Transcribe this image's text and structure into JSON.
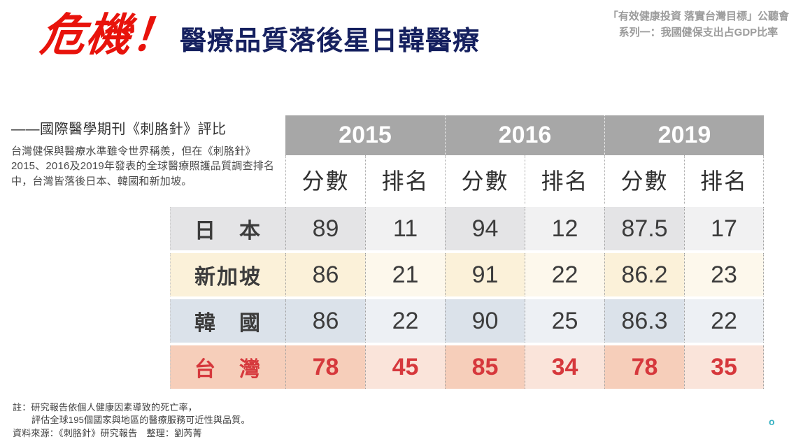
{
  "header": {
    "crisis": "危機！",
    "title": "醫療品質落後星日韓醫療",
    "event_line1": "「有效健康投資 落實台灣目標」公聽會",
    "event_line2": "系列一：我國健保支出占GDP比率"
  },
  "intro": {
    "heading": "——國際醫學期刊《刺胳針》評比",
    "body": "台灣健保與醫療水準雖令世界稱羨，但在《刺胳針》2015、2016及2019年發表的全球醫療照護品質調查排名中，台灣皆落後日本、韓國和新加坡。"
  },
  "table": {
    "header_bg": "#a7a7a7",
    "years": [
      "2015",
      "2016",
      "2019"
    ],
    "subheaders": [
      "分數",
      "排名",
      "分數",
      "排名",
      "分數",
      "排名"
    ],
    "rows": [
      {
        "name": "日　本",
        "values": [
          "89",
          "11",
          "94",
          "12",
          "87.5",
          "17"
        ],
        "score_bg": "#e4e4e6",
        "rank_bg": "#f1f1f2",
        "text_color": "#3c3c3c",
        "bold": false
      },
      {
        "name": "新加坡",
        "values": [
          "86",
          "21",
          "91",
          "22",
          "86.2",
          "23"
        ],
        "score_bg": "#fbf1d9",
        "rank_bg": "#fdf8ec",
        "text_color": "#3c3c3c",
        "bold": false
      },
      {
        "name": "韓　國",
        "values": [
          "86",
          "22",
          "90",
          "25",
          "86.3",
          "22"
        ],
        "score_bg": "#dbe2ea",
        "rank_bg": "#edf0f4",
        "text_color": "#3c3c3c",
        "bold": false
      },
      {
        "name": "台　灣",
        "values": [
          "78",
          "45",
          "85",
          "34",
          "78",
          "35"
        ],
        "score_bg": "#f6ceba",
        "rank_bg": "#fae4da",
        "text_color": "#d6383c",
        "bold": true
      }
    ]
  },
  "footer": {
    "note_line1": "註：研究報告依個人健康因素導致的死亡率，",
    "note_line2": "評估全球195個國家與地區的醫療服務可近性與品質。",
    "source": "資料來源：《刺胳針》研究報告　整理：劉芮菁",
    "page_marker": "o"
  },
  "colors": {
    "crisis_red": "#e8130c",
    "title_navy": "#15205f",
    "event_gray": "#9c9c9c",
    "taiwan_red": "#d6383c",
    "page_marker_teal": "#3ab3c4"
  },
  "chart_data": {
    "type": "table",
    "title": "國際醫學期刊《刺胳針》評比：全球醫療照護品質調查",
    "column_groups": [
      "2015",
      "2016",
      "2019"
    ],
    "columns": [
      "分數",
      "排名",
      "分數",
      "排名",
      "分數",
      "排名"
    ],
    "rows": [
      {
        "country": "日本",
        "2015": {
          "score": 89,
          "rank": 11
        },
        "2016": {
          "score": 94,
          "rank": 12
        },
        "2019": {
          "score": 87.5,
          "rank": 17
        }
      },
      {
        "country": "新加坡",
        "2015": {
          "score": 86,
          "rank": 21
        },
        "2016": {
          "score": 91,
          "rank": 22
        },
        "2019": {
          "score": 86.2,
          "rank": 23
        }
      },
      {
        "country": "韓國",
        "2015": {
          "score": 86,
          "rank": 22
        },
        "2016": {
          "score": 90,
          "rank": 25
        },
        "2019": {
          "score": 86.3,
          "rank": 22
        }
      },
      {
        "country": "台灣",
        "2015": {
          "score": 78,
          "rank": 45
        },
        "2016": {
          "score": 85,
          "rank": 34
        },
        "2019": {
          "score": 78,
          "rank": 35
        }
      }
    ]
  }
}
